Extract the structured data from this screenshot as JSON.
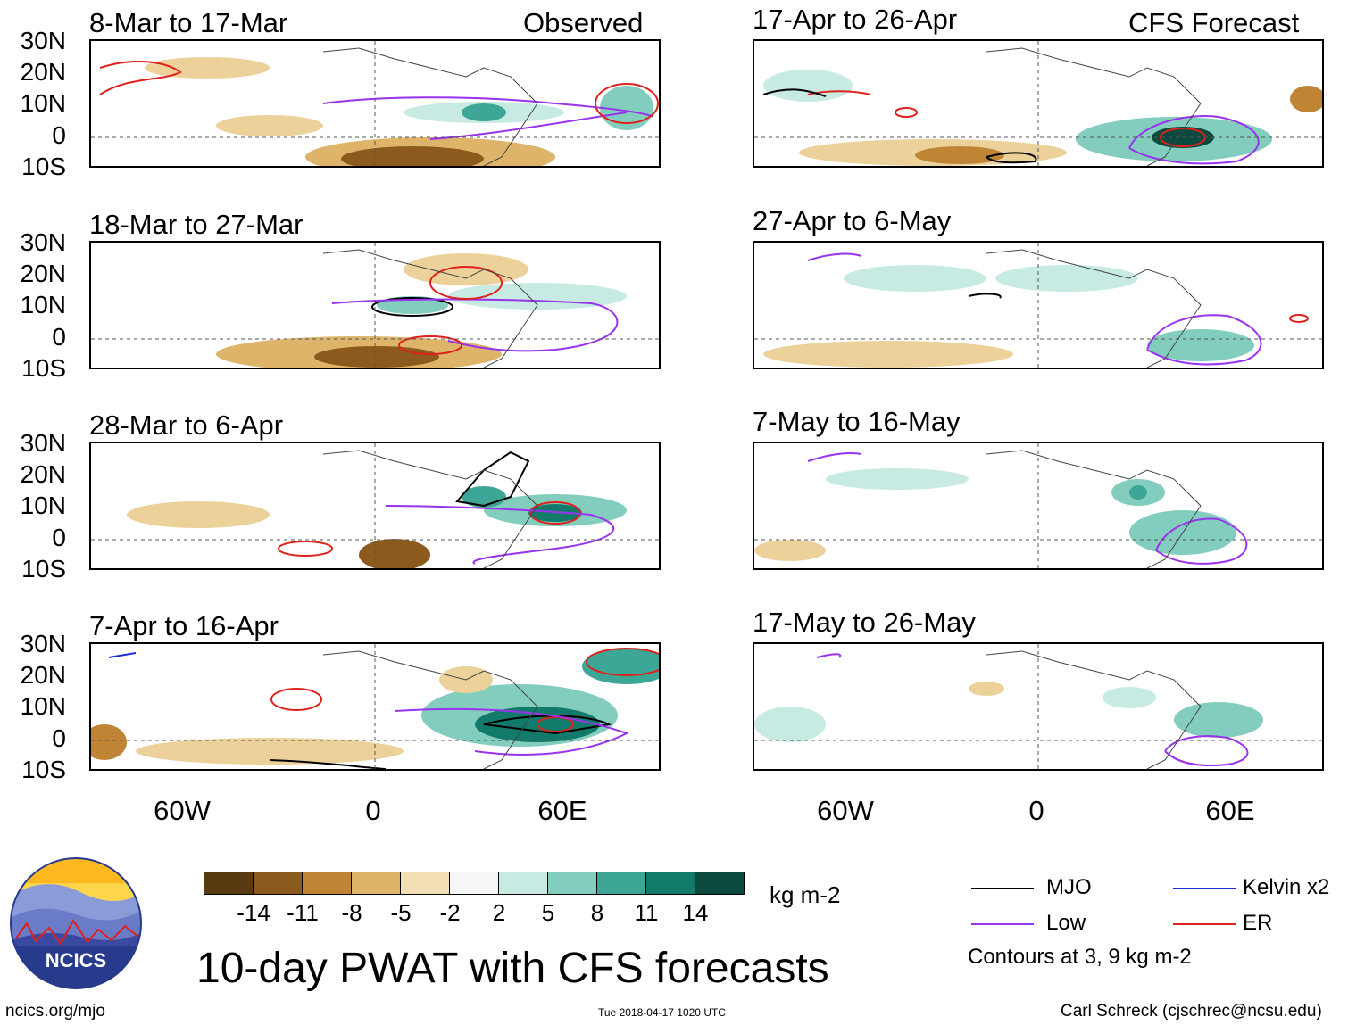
{
  "figure": {
    "main_title": "10-day PWAT with CFS forecasts",
    "units": "kg m-2",
    "contour_note": "Contours at 3, 9 kg m-2",
    "site": "ncics.org/mjo",
    "timestamp": "Tue 2018-04-17 1020 UTC",
    "credit": "Carl Schreck (cjschrec@ncsu.edu)",
    "logo_text": "NCICS"
  },
  "columns": {
    "left_tag": "Observed",
    "right_tag": "CFS Forecast"
  },
  "axes": {
    "lat_labels": [
      "30N",
      "20N",
      "10N",
      "0",
      "10S"
    ],
    "lon_labels": [
      "60W",
      "0",
      "60E"
    ]
  },
  "panels": {
    "left": [
      {
        "title": "8-Mar to 17-Mar"
      },
      {
        "title": "18-Mar to 27-Mar"
      },
      {
        "title": "28-Mar to 6-Apr"
      },
      {
        "title": "7-Apr to 16-Apr"
      }
    ],
    "right": [
      {
        "title": "17-Apr to 26-Apr"
      },
      {
        "title": "27-Apr to 6-May"
      },
      {
        "title": "7-May to 16-May"
      },
      {
        "title": "17-May to 26-May"
      }
    ]
  },
  "colorbar": {
    "labels": [
      "-14",
      "-11",
      "-8",
      "-5",
      "-2",
      "2",
      "5",
      "8",
      "11",
      "14"
    ],
    "colors": [
      "#5a3a10",
      "#8c5a1c",
      "#bf8535",
      "#ddb46a",
      "#f2dfb3",
      "#f7f7f7",
      "#c7ebe2",
      "#82cdbd",
      "#3da696",
      "#117a6a",
      "#0a4a3e"
    ]
  },
  "legend": [
    {
      "label": "MJO",
      "color": "#000000"
    },
    {
      "label": "Kelvin x2",
      "color": "#1a2ed6"
    },
    {
      "label": "Low",
      "color": "#9933ee"
    },
    {
      "label": "ER",
      "color": "#e0201a"
    }
  ],
  "colors": {
    "brown_dark": "#8c5a1c",
    "brown_mid": "#bf8535",
    "brown_light": "#ecd29a",
    "teal_light": "#c7ebe2",
    "teal_mid": "#82cdbd",
    "teal_dark": "#2f8f7e"
  }
}
